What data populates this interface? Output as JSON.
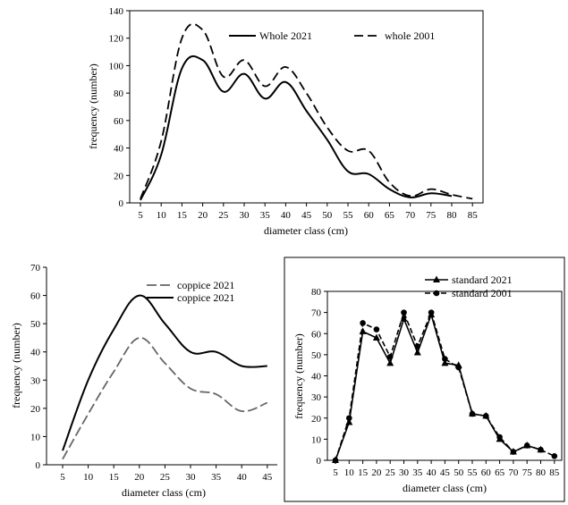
{
  "chart_data": [
    {
      "type": "line",
      "title": "",
      "xlabel": "diameter class (cm)",
      "ylabel": "frequency (number)",
      "categories": [
        "5",
        "10",
        "15",
        "20",
        "25",
        "30",
        "35",
        "40",
        "45",
        "50",
        "55",
        "60",
        "65",
        "70",
        "75",
        "80",
        "85"
      ],
      "xlim": [
        5,
        85
      ],
      "ylim": [
        0,
        140
      ],
      "yticks": [
        "0",
        "20",
        "40",
        "60",
        "80",
        "100",
        "120",
        "140"
      ],
      "legend_position": "top-right",
      "series": [
        {
          "name": "Whole 2021",
          "style": "solid",
          "x": [
            5,
            10,
            15,
            20,
            25,
            30,
            35,
            40,
            45,
            50,
            55,
            60,
            65,
            70,
            75,
            80
          ],
          "values": [
            2,
            35,
            98,
            104,
            81,
            94,
            76,
            88,
            67,
            46,
            23,
            21,
            10,
            4,
            7,
            5
          ]
        },
        {
          "name": "whole 2001",
          "style": "dashed",
          "x": [
            5,
            10,
            15,
            20,
            25,
            30,
            35,
            40,
            45,
            50,
            55,
            60,
            65,
            70,
            75,
            80,
            85
          ],
          "values": [
            3,
            45,
            120,
            126,
            92,
            104,
            85,
            99,
            80,
            55,
            38,
            38,
            15,
            5,
            10,
            6,
            3
          ]
        }
      ]
    },
    {
      "type": "line",
      "title": "",
      "xlabel": "diameter class (cm)",
      "ylabel": "frequency (number)",
      "categories": [
        "5",
        "10",
        "15",
        "20",
        "25",
        "30",
        "35",
        "40",
        "45"
      ],
      "xlim": [
        5,
        45
      ],
      "ylim": [
        0,
        70
      ],
      "yticks": [
        "0",
        "10",
        "20",
        "30",
        "40",
        "50",
        "60",
        "70"
      ],
      "legend_position": "top-right",
      "series": [
        {
          "name": "coppice 2021",
          "style": "dashed",
          "x": [
            5,
            10,
            15,
            20,
            25,
            30,
            35,
            40,
            45
          ],
          "values": [
            2,
            18,
            33,
            45,
            36,
            27,
            25,
            19,
            22
          ]
        },
        {
          "name": "coppice 2021",
          "style": "solid",
          "x": [
            5,
            10,
            15,
            20,
            25,
            30,
            35,
            40,
            45
          ],
          "values": [
            5,
            30,
            48,
            60,
            50,
            40,
            40,
            35,
            35
          ]
        }
      ]
    },
    {
      "type": "line",
      "title": "",
      "xlabel": "diameter class (cm)",
      "ylabel": "frequency (number)",
      "categories": [
        "5",
        "10",
        "15",
        "20",
        "25",
        "30",
        "35",
        "40",
        "45",
        "50",
        "55",
        "60",
        "65",
        "70",
        "75",
        "80",
        "85"
      ],
      "xlim": [
        5,
        85
      ],
      "ylim": [
        0,
        80
      ],
      "yticks": [
        "0",
        "10",
        "20",
        "30",
        "40",
        "50",
        "60",
        "70",
        "80"
      ],
      "legend_position": "top-right",
      "series": [
        {
          "name": "standard 2021",
          "style": "solid",
          "marker": "triangle",
          "x": [
            5,
            10,
            15,
            20,
            25,
            30,
            35,
            40,
            45,
            50,
            55,
            60,
            65,
            70,
            75,
            80
          ],
          "values": [
            0,
            18,
            61,
            58,
            46,
            67,
            51,
            69,
            46,
            45,
            22,
            21,
            10,
            4,
            7,
            5
          ]
        },
        {
          "name": "standard 2001",
          "style": "dashed",
          "marker": "circle",
          "x": [
            5,
            10,
            15,
            20,
            25,
            30,
            35,
            40,
            45,
            50,
            55,
            60,
            65,
            70,
            75,
            80,
            85
          ],
          "values": [
            0,
            20,
            65,
            62,
            49,
            70,
            54,
            70,
            48,
            44,
            22,
            21,
            11,
            4,
            7,
            5,
            2
          ]
        }
      ]
    }
  ]
}
